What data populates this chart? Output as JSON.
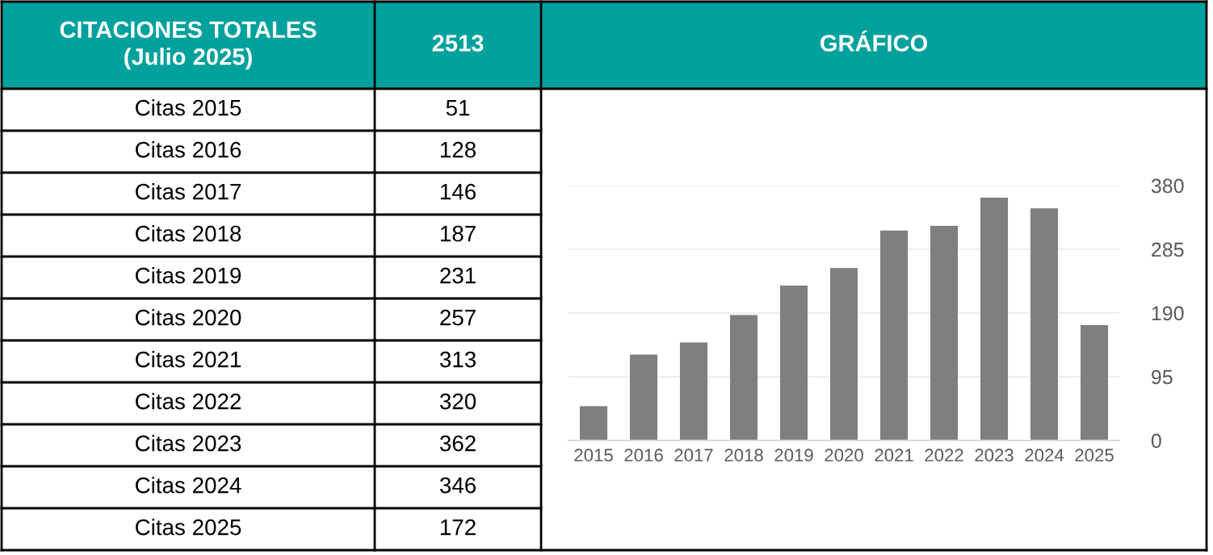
{
  "chart_data": {
    "type": "bar",
    "title": "GRÁFICO",
    "categories": [
      "2015",
      "2016",
      "2017",
      "2018",
      "2019",
      "2020",
      "2021",
      "2022",
      "2023",
      "2024",
      "2025"
    ],
    "values": [
      51,
      128,
      146,
      187,
      231,
      257,
      313,
      320,
      362,
      346,
      172
    ],
    "color": "#7f7f7f",
    "ylim": [
      0,
      380
    ],
    "yticks": [
      0,
      95,
      190,
      285,
      380
    ],
    "grid": "y",
    "annotations": [
      "CITACIONES TOTALES\n(Julio 2025)",
      "2513",
      "Citas 2015",
      "51",
      "Citas 2016",
      "128",
      "Citas 2017",
      "146",
      "Citas 2018",
      "187",
      "Citas 2019",
      "231",
      "Citas 2020",
      "257",
      "Citas 2021",
      "313",
      "Citas 2022",
      "320",
      "Citas 2023",
      "362",
      "Citas 2024",
      "346",
      "Citas 2025",
      "172"
    ]
  }
}
